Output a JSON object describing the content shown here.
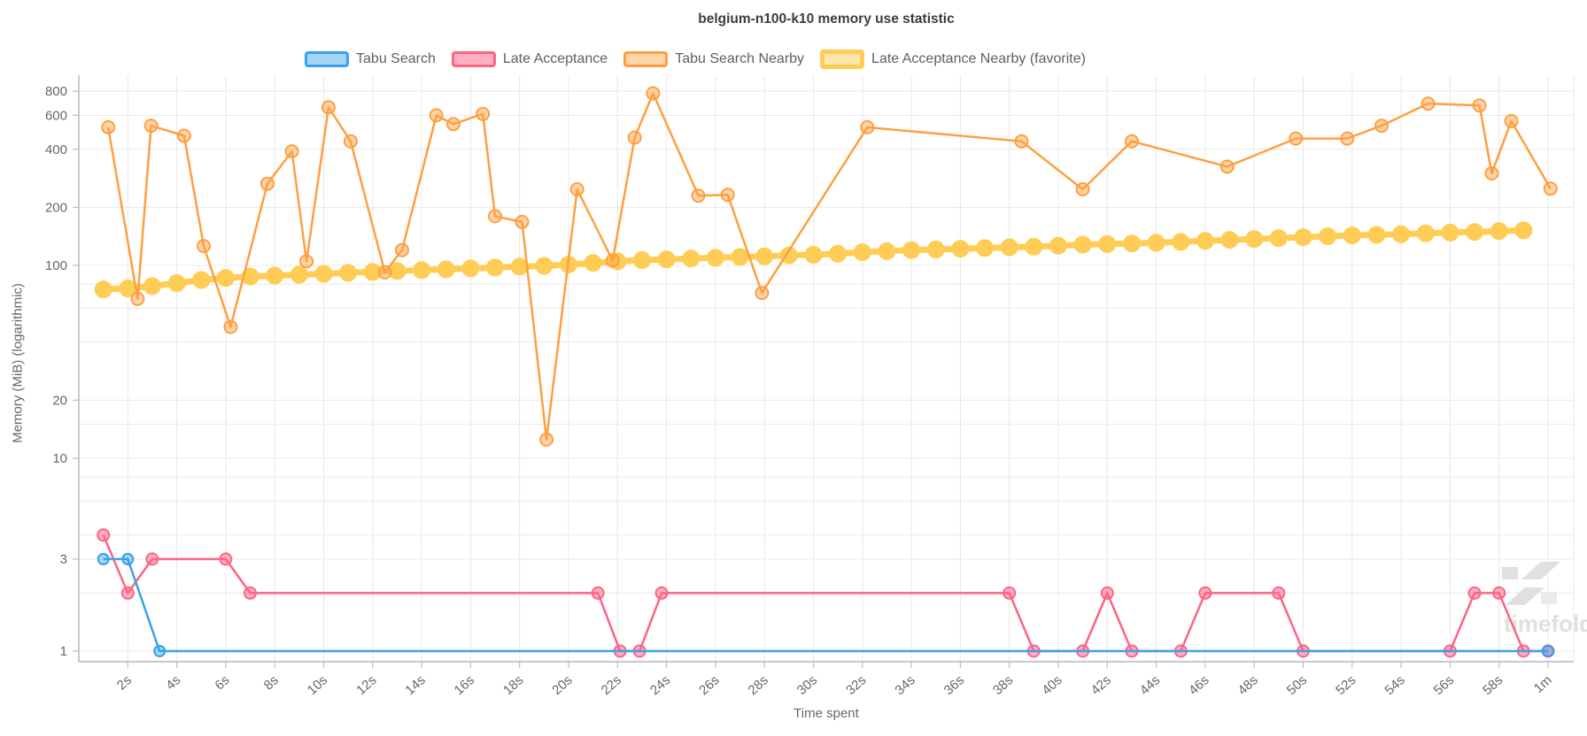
{
  "chart": {
    "title": "belgium-n100-k10 memory use statistic"
  },
  "watermark": {
    "text": "timefold",
    "color": "#e0e0e0"
  },
  "axes": {
    "x_label": "Time spent",
    "y_label": "Memory (MiB) (logarithmic)",
    "x_ticks": [
      {
        "t": 2,
        "label": "2s"
      },
      {
        "t": 4,
        "label": "4s"
      },
      {
        "t": 6,
        "label": "6s"
      },
      {
        "t": 8,
        "label": "8s"
      },
      {
        "t": 10,
        "label": "10s"
      },
      {
        "t": 12,
        "label": "12s"
      },
      {
        "t": 14,
        "label": "14s"
      },
      {
        "t": 16,
        "label": "16s"
      },
      {
        "t": 18,
        "label": "18s"
      },
      {
        "t": 20,
        "label": "20s"
      },
      {
        "t": 22,
        "label": "22s"
      },
      {
        "t": 24,
        "label": "24s"
      },
      {
        "t": 26,
        "label": "26s"
      },
      {
        "t": 28,
        "label": "28s"
      },
      {
        "t": 30,
        "label": "30s"
      },
      {
        "t": 32,
        "label": "32s"
      },
      {
        "t": 34,
        "label": "34s"
      },
      {
        "t": 36,
        "label": "36s"
      },
      {
        "t": 38,
        "label": "38s"
      },
      {
        "t": 40,
        "label": "40s"
      },
      {
        "t": 42,
        "label": "42s"
      },
      {
        "t": 44,
        "label": "44s"
      },
      {
        "t": 46,
        "label": "46s"
      },
      {
        "t": 48,
        "label": "48s"
      },
      {
        "t": 50,
        "label": "50s"
      },
      {
        "t": 52,
        "label": "52s"
      },
      {
        "t": 54,
        "label": "54s"
      },
      {
        "t": 56,
        "label": "56s"
      },
      {
        "t": 58,
        "label": "58s"
      },
      {
        "t": 60,
        "label": "1m"
      }
    ],
    "y_labeled_ticks": [
      800,
      600,
      400,
      200,
      100,
      20,
      10,
      3,
      1
    ],
    "y_gridlines": [
      800,
      600,
      400,
      200,
      100,
      80,
      60,
      40,
      20,
      15,
      10,
      8,
      6,
      4,
      3,
      2,
      1
    ]
  },
  "chart_data": {
    "type": "line",
    "title": "belgium-n100-k10 memory use statistic",
    "xlabel": "Time spent",
    "ylabel": "Memory (MiB) (logarithmic)",
    "y_scale": "log",
    "xlim_seconds": [
      0,
      61.1
    ],
    "ylim": [
      1,
      970
    ],
    "legend_position": "top",
    "grid": true,
    "series": [
      {
        "name": "Tabu Search",
        "color": "#36A2EB",
        "marker_fill": "rgba(54,162,235,0.45)",
        "line_width": 2.5,
        "marker_radius": 6,
        "favorite": false,
        "points": [
          [
            1,
            3
          ],
          [
            2,
            3
          ],
          [
            3.3,
            1
          ],
          [
            60,
            1
          ]
        ]
      },
      {
        "name": "Late Acceptance",
        "color": "#FF6384",
        "marker_fill": "rgba(255,99,132,0.5)",
        "line_width": 2.5,
        "marker_radius": 6.5,
        "favorite": false,
        "points": [
          [
            1,
            4
          ],
          [
            2,
            2
          ],
          [
            3,
            3
          ],
          [
            6,
            3
          ],
          [
            7,
            2
          ],
          [
            21.2,
            2
          ],
          [
            22.1,
            1
          ],
          [
            22.9,
            1
          ],
          [
            23.8,
            2
          ],
          [
            38,
            2
          ],
          [
            39,
            1
          ],
          [
            41,
            1
          ],
          [
            42,
            2
          ],
          [
            43,
            1
          ],
          [
            45,
            1
          ],
          [
            46,
            2
          ],
          [
            49,
            2
          ],
          [
            50,
            1
          ],
          [
            56,
            1
          ],
          [
            57,
            2
          ],
          [
            58,
            2
          ],
          [
            59,
            1
          ],
          [
            60,
            1
          ]
        ]
      },
      {
        "name": "Tabu Search Nearby",
        "color": "#FF9F40",
        "marker_fill": "rgba(255,159,64,0.45)",
        "line_width": 2.5,
        "marker_radius": 7,
        "favorite": false,
        "points": [
          [
            1.2,
            520
          ],
          [
            2.4,
            67
          ],
          [
            2.95,
            530
          ],
          [
            4.3,
            470
          ],
          [
            5.1,
            126
          ],
          [
            6.2,
            48
          ],
          [
            7.7,
            265
          ],
          [
            8.7,
            390
          ],
          [
            9.3,
            105
          ],
          [
            10.2,
            660
          ],
          [
            11.1,
            440
          ],
          [
            12.5,
            92
          ],
          [
            13.2,
            120
          ],
          [
            14.6,
            600
          ],
          [
            15.3,
            540
          ],
          [
            16.5,
            610
          ],
          [
            17,
            180
          ],
          [
            18.1,
            168
          ],
          [
            19.1,
            12.5
          ],
          [
            20.35,
            248
          ],
          [
            21.8,
            106
          ],
          [
            22.7,
            460
          ],
          [
            23.45,
            780
          ],
          [
            25.3,
            230
          ],
          [
            26.5,
            232
          ],
          [
            27.9,
            72
          ],
          [
            32.2,
            520
          ],
          [
            38.5,
            440
          ],
          [
            41,
            248
          ],
          [
            43,
            440
          ],
          [
            46.9,
            325
          ],
          [
            49.7,
            455
          ],
          [
            51.8,
            455
          ],
          [
            53.2,
            530
          ],
          [
            55.1,
            690
          ],
          [
            57.2,
            675
          ],
          [
            57.7,
            300
          ],
          [
            58.5,
            560
          ],
          [
            60.1,
            250
          ]
        ]
      },
      {
        "name": "Late Acceptance Nearby (favorite)",
        "color": "#FFCD56",
        "marker_fill": "#FFCD56",
        "line_width": 7,
        "marker_radius": 9,
        "favorite": true,
        "points": [
          [
            1,
            75
          ],
          [
            2,
            76
          ],
          [
            3,
            78
          ],
          [
            4,
            81
          ],
          [
            5,
            84
          ],
          [
            6,
            86
          ],
          [
            7,
            87.5
          ],
          [
            8,
            88.5
          ],
          [
            9,
            89.5
          ],
          [
            10,
            90.5
          ],
          [
            11,
            91.5
          ],
          [
            12,
            92.5
          ],
          [
            13,
            93.5
          ],
          [
            14,
            94.5
          ],
          [
            15,
            95.5
          ],
          [
            16,
            96.5
          ],
          [
            17,
            97.5
          ],
          [
            18,
            98.5
          ],
          [
            19,
            99.5
          ],
          [
            20,
            101
          ],
          [
            21,
            103
          ],
          [
            22,
            105
          ],
          [
            23,
            106.5
          ],
          [
            24,
            107.5
          ],
          [
            25,
            108.5
          ],
          [
            26,
            109.5
          ],
          [
            27,
            110.5
          ],
          [
            28,
            111.5
          ],
          [
            29,
            112.5
          ],
          [
            30,
            113.5
          ],
          [
            31,
            115
          ],
          [
            32,
            117
          ],
          [
            33,
            118.5
          ],
          [
            34,
            120
          ],
          [
            35,
            121
          ],
          [
            36,
            122
          ],
          [
            37,
            123
          ],
          [
            38,
            124
          ],
          [
            39,
            125
          ],
          [
            40,
            126.5
          ],
          [
            41,
            128
          ],
          [
            42,
            129
          ],
          [
            43,
            130
          ],
          [
            44,
            131
          ],
          [
            45,
            132.5
          ],
          [
            46,
            134
          ],
          [
            47,
            135.5
          ],
          [
            48,
            137
          ],
          [
            49,
            138.5
          ],
          [
            50,
            140
          ],
          [
            51,
            141.5
          ],
          [
            52,
            143
          ],
          [
            53,
            144
          ],
          [
            54,
            145
          ],
          [
            55,
            146.5
          ],
          [
            56,
            148
          ],
          [
            57,
            149
          ],
          [
            58,
            150.5
          ],
          [
            59,
            152
          ]
        ]
      }
    ]
  }
}
